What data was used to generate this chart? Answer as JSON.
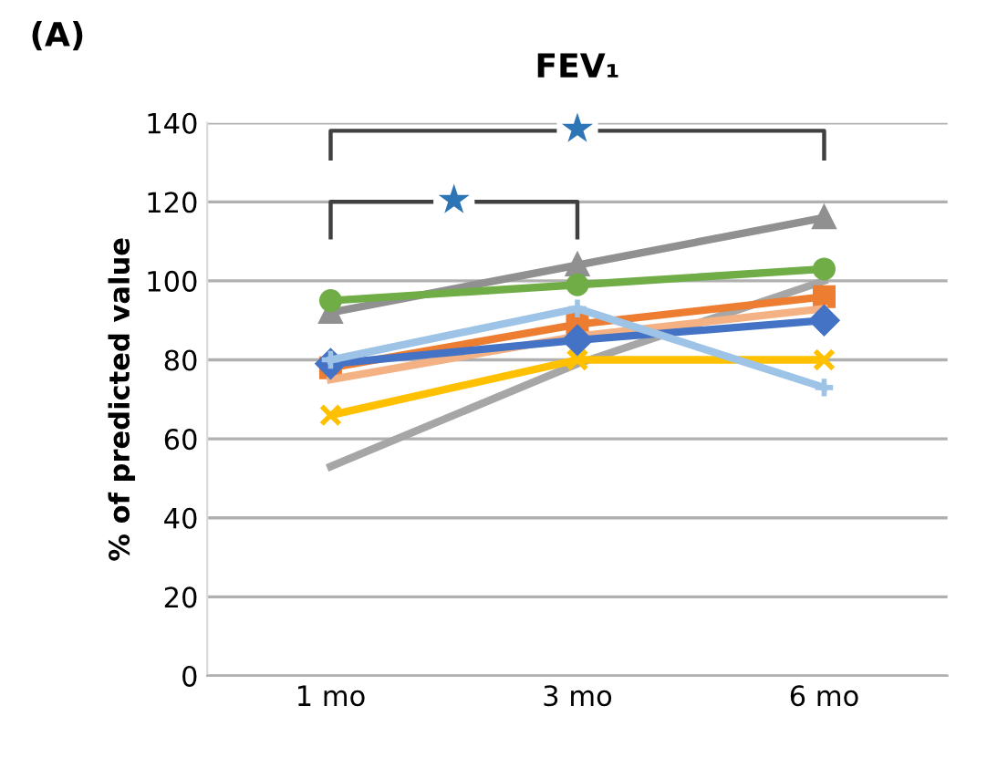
{
  "chart_data": {
    "type": "line",
    "title": "FEV₁",
    "ylabel": "% of predicted value",
    "categories": [
      "1 mo",
      "3 mo",
      "6 mo"
    ],
    "ylim": [
      0,
      140
    ],
    "yticks": [
      0,
      20,
      40,
      60,
      80,
      100,
      120,
      140
    ],
    "grid": "y",
    "legend": false,
    "annotations": [
      "(A)",
      "★",
      "★"
    ],
    "series": [
      {
        "color": "#a6a6a6",
        "marker": "none",
        "values": [
          53,
          79,
          100
        ]
      },
      {
        "color": "#ffc000",
        "marker": "cross",
        "values": [
          66,
          80,
          80
        ]
      },
      {
        "color": "#ed7d31",
        "marker": "square",
        "values": [
          78,
          89,
          96
        ]
      },
      {
        "color": "#f4b183",
        "marker": "none",
        "values": [
          75,
          86,
          93
        ]
      },
      {
        "color": "#4472c4",
        "marker": "diamond",
        "values": [
          79,
          85,
          90
        ]
      },
      {
        "color": "#9dc3e6",
        "marker": "plus",
        "values": [
          80,
          93,
          73
        ]
      },
      {
        "color": "#909090",
        "marker": "triangle",
        "values": [
          92,
          104,
          116
        ]
      },
      {
        "color": "#70ad47",
        "marker": "circle",
        "values": [
          95,
          99,
          103
        ]
      }
    ]
  }
}
